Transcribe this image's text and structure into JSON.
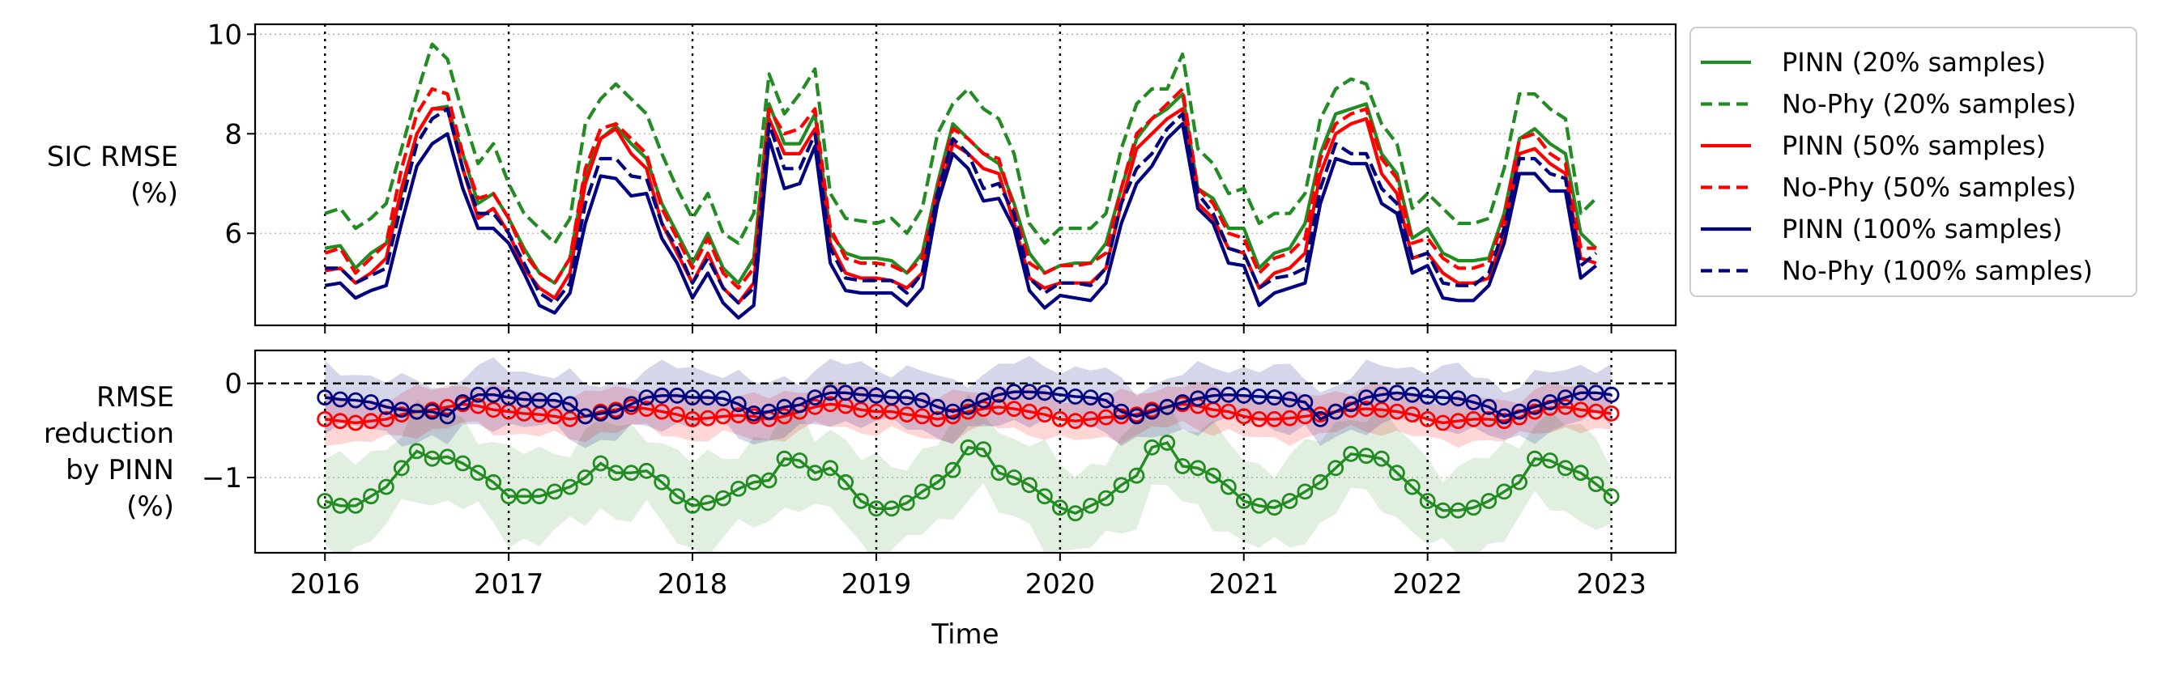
{
  "chart_data": [
    {
      "type": "line",
      "panel": "top",
      "ylabel": "SIC RMSE\n(%)",
      "xlim": [
        2015.62,
        2023.35
      ],
      "ylim": [
        4.15,
        10.2
      ],
      "yticks": [
        6,
        8,
        10
      ],
      "ytick_labels": [
        "6",
        "8",
        "10"
      ],
      "xticks": [
        2016,
        2017,
        2018,
        2019,
        2020,
        2021,
        2022,
        2023
      ],
      "grid": "horizontal dotted",
      "vertical_marker_lines": [
        2016,
        2017,
        2018,
        2019,
        2020,
        2021,
        2022,
        2023
      ],
      "legend_position": "outside right",
      "x_start": 2016,
      "x_step": 0.0833333,
      "series": [
        {
          "name": "PINN (20% samples)",
          "color": "#228B22",
          "dash": "solid",
          "values": [
            5.7,
            5.75,
            5.3,
            5.6,
            5.8,
            6.8,
            8.0,
            8.5,
            8.55,
            7.6,
            6.6,
            6.8,
            6.3,
            5.7,
            5.2,
            5.0,
            5.5,
            7.2,
            7.9,
            8.15,
            7.8,
            7.5,
            6.6,
            6.0,
            5.4,
            6.0,
            5.3,
            5.0,
            5.5,
            8.6,
            7.8,
            7.8,
            8.4,
            6.0,
            5.6,
            5.5,
            5.5,
            5.45,
            5.2,
            5.6,
            7.0,
            8.2,
            7.9,
            7.6,
            7.4,
            6.6,
            5.6,
            5.2,
            5.35,
            5.4,
            5.4,
            5.8,
            6.9,
            7.9,
            8.3,
            8.5,
            8.8,
            6.9,
            6.7,
            6.1,
            6.1,
            5.3,
            5.6,
            5.7,
            6.2,
            7.6,
            8.4,
            8.5,
            8.6,
            7.6,
            7.2,
            5.9,
            6.1,
            5.6,
            5.45,
            5.45,
            5.5,
            6.4,
            7.9,
            8.1,
            7.8,
            7.6,
            6.0,
            5.7
          ]
        },
        {
          "name": "No-Phy (20% samples)",
          "color": "#228B22",
          "dash": "dashed",
          "values": [
            6.4,
            6.5,
            6.1,
            6.3,
            6.6,
            7.7,
            8.8,
            9.8,
            9.5,
            8.4,
            7.4,
            7.8,
            7.0,
            6.4,
            6.1,
            5.8,
            6.3,
            8.2,
            8.7,
            9.0,
            8.7,
            8.4,
            7.6,
            6.9,
            6.3,
            6.8,
            6.0,
            5.8,
            6.4,
            9.2,
            8.4,
            8.8,
            9.3,
            6.8,
            6.3,
            6.25,
            6.2,
            6.3,
            6.0,
            6.5,
            8.0,
            8.6,
            8.9,
            8.5,
            8.3,
            7.6,
            6.2,
            5.8,
            6.1,
            6.1,
            6.1,
            6.4,
            7.7,
            8.6,
            8.9,
            8.9,
            9.6,
            7.7,
            7.4,
            6.8,
            6.9,
            6.2,
            6.4,
            6.4,
            6.8,
            8.3,
            8.9,
            9.1,
            9.0,
            8.2,
            7.8,
            6.5,
            6.8,
            6.5,
            6.2,
            6.2,
            6.3,
            7.3,
            8.8,
            8.8,
            8.5,
            8.3,
            6.4,
            6.7
          ]
        },
        {
          "name": "PINN (50% samples)",
          "color": "#FF0000",
          "dash": "solid",
          "values": [
            5.25,
            5.3,
            5.0,
            5.2,
            5.5,
            6.9,
            8.0,
            8.5,
            8.5,
            7.3,
            6.3,
            6.5,
            6.0,
            5.3,
            4.9,
            4.7,
            5.2,
            7.0,
            7.9,
            8.1,
            7.6,
            7.3,
            6.2,
            5.6,
            5.0,
            5.6,
            4.9,
            4.6,
            5.0,
            8.3,
            7.6,
            7.6,
            8.1,
            5.8,
            5.2,
            5.1,
            5.1,
            5.05,
            4.9,
            5.2,
            6.6,
            7.8,
            7.6,
            7.3,
            7.2,
            6.2,
            5.1,
            4.9,
            5.0,
            5.0,
            5.0,
            5.3,
            6.6,
            7.7,
            8.0,
            8.3,
            8.5,
            6.6,
            6.3,
            5.7,
            5.6,
            4.9,
            5.2,
            5.3,
            5.6,
            7.2,
            8.0,
            8.2,
            8.3,
            7.2,
            6.8,
            5.5,
            5.6,
            5.2,
            5.0,
            5.0,
            5.1,
            6.0,
            7.6,
            7.7,
            7.4,
            7.2,
            5.5,
            5.4
          ]
        },
        {
          "name": "No-Phy (50% samples)",
          "color": "#FF0000",
          "dash": "dashed",
          "values": [
            5.6,
            5.7,
            5.2,
            5.5,
            5.8,
            7.3,
            8.4,
            8.9,
            8.8,
            7.6,
            6.7,
            6.8,
            6.3,
            5.6,
            5.2,
            5.0,
            5.5,
            7.3,
            8.1,
            8.2,
            7.9,
            7.6,
            6.5,
            5.9,
            5.3,
            5.9,
            5.2,
            4.9,
            5.3,
            8.5,
            8.0,
            8.1,
            8.5,
            6.1,
            5.5,
            5.4,
            5.4,
            5.35,
            5.2,
            5.5,
            6.9,
            8.1,
            7.9,
            7.6,
            7.5,
            6.5,
            5.4,
            5.2,
            5.35,
            5.35,
            5.4,
            5.6,
            6.9,
            8.0,
            8.3,
            8.6,
            8.9,
            6.9,
            6.6,
            6.0,
            5.9,
            5.2,
            5.5,
            5.6,
            5.9,
            7.5,
            8.2,
            8.4,
            8.5,
            7.5,
            7.1,
            5.8,
            5.9,
            5.5,
            5.3,
            5.3,
            5.4,
            6.3,
            7.9,
            8.0,
            7.6,
            7.4,
            5.7,
            5.7
          ]
        },
        {
          "name": "PINN (100% samples)",
          "color": "#000080",
          "dash": "solid",
          "values": [
            4.95,
            5.0,
            4.7,
            4.85,
            4.95,
            6.2,
            7.35,
            7.8,
            8.0,
            6.9,
            6.1,
            6.1,
            5.8,
            5.2,
            4.55,
            4.4,
            4.8,
            6.2,
            7.15,
            7.1,
            6.75,
            6.8,
            5.9,
            5.4,
            4.7,
            5.2,
            4.6,
            4.3,
            4.55,
            7.9,
            6.9,
            7.0,
            7.75,
            5.4,
            4.85,
            4.8,
            4.8,
            4.8,
            4.55,
            4.9,
            6.6,
            7.6,
            7.3,
            6.65,
            6.7,
            6.1,
            4.85,
            4.5,
            4.75,
            4.7,
            4.65,
            5.0,
            6.2,
            7.0,
            7.35,
            7.9,
            8.2,
            6.5,
            6.2,
            5.4,
            5.35,
            4.55,
            4.8,
            4.9,
            5.0,
            6.6,
            7.5,
            7.4,
            7.4,
            6.6,
            6.4,
            5.2,
            5.35,
            4.7,
            4.65,
            4.65,
            4.95,
            5.8,
            7.2,
            7.2,
            6.85,
            6.85,
            5.1,
            5.35
          ]
        },
        {
          "name": "No-Phy (100% samples)",
          "color": "#000080",
          "dash": "dashed",
          "values": [
            5.3,
            5.3,
            5.0,
            5.15,
            5.3,
            6.6,
            7.8,
            8.3,
            8.5,
            7.3,
            6.4,
            6.4,
            6.0,
            5.4,
            4.8,
            4.6,
            5.0,
            6.6,
            7.5,
            7.5,
            7.15,
            7.1,
            6.2,
            5.7,
            5.0,
            5.5,
            4.9,
            4.6,
            4.9,
            8.2,
            7.3,
            7.3,
            8.0,
            5.7,
            5.1,
            5.05,
            5.05,
            5.05,
            4.8,
            5.2,
            6.8,
            7.9,
            7.6,
            6.9,
            7.0,
            6.4,
            5.1,
            4.8,
            5.0,
            5.0,
            4.95,
            5.3,
            6.6,
            7.3,
            7.6,
            8.1,
            8.4,
            6.8,
            6.4,
            5.7,
            5.6,
            4.9,
            5.1,
            5.15,
            5.3,
            6.9,
            7.8,
            7.6,
            7.6,
            6.9,
            6.6,
            5.5,
            5.6,
            5.0,
            4.95,
            4.95,
            5.2,
            6.1,
            7.5,
            7.5,
            7.2,
            7.1,
            5.35,
            5.6
          ]
        }
      ]
    },
    {
      "type": "line",
      "panel": "bottom",
      "ylabel": "RMSE\nreduction\nby PINN\n(%)",
      "xlabel": "Time",
      "xlim": [
        2015.62,
        2023.35
      ],
      "ylim": [
        -1.8,
        0.35
      ],
      "yticks": [
        0,
        -1
      ],
      "ytick_labels": [
        "0",
        "−1"
      ],
      "xticks": [
        2016,
        2017,
        2018,
        2019,
        2020,
        2021,
        2022,
        2023
      ],
      "xtick_labels": [
        "2016",
        "2017",
        "2018",
        "2019",
        "2020",
        "2021",
        "2022",
        "2023"
      ],
      "reference_line": 0,
      "grid": "horizontal dotted",
      "vertical_marker_lines": [
        2016,
        2017,
        2018,
        2019,
        2020,
        2021,
        2022,
        2023
      ],
      "x_start": 2016,
      "x_step": 0.0833333,
      "band_halfwidth": {
        "20%": 0.45,
        "50%": 0.22,
        "100%": 0.3
      },
      "series": [
        {
          "name": "20% samples",
          "color": "#228B22",
          "marker": "circle",
          "values": [
            -1.25,
            -1.3,
            -1.3,
            -1.2,
            -1.1,
            -0.9,
            -0.72,
            -0.8,
            -0.78,
            -0.85,
            -0.95,
            -1.05,
            -1.2,
            -1.2,
            -1.2,
            -1.15,
            -1.1,
            -1.0,
            -0.85,
            -0.95,
            -0.95,
            -0.93,
            -1.05,
            -1.2,
            -1.3,
            -1.27,
            -1.22,
            -1.12,
            -1.05,
            -1.03,
            -0.8,
            -0.82,
            -0.95,
            -0.9,
            -1.05,
            -1.25,
            -1.33,
            -1.33,
            -1.27,
            -1.15,
            -1.05,
            -0.92,
            -0.68,
            -0.7,
            -0.95,
            -1.0,
            -1.08,
            -1.2,
            -1.32,
            -1.38,
            -1.3,
            -1.22,
            -1.08,
            -0.98,
            -0.68,
            -0.63,
            -0.88,
            -0.9,
            -0.98,
            -1.1,
            -1.25,
            -1.3,
            -1.32,
            -1.25,
            -1.15,
            -1.05,
            -0.9,
            -0.75,
            -0.77,
            -0.8,
            -0.95,
            -1.1,
            -1.25,
            -1.35,
            -1.35,
            -1.32,
            -1.25,
            -1.15,
            -1.05,
            -0.8,
            -0.82,
            -0.9,
            -0.95,
            -1.07,
            -1.2
          ]
        },
        {
          "name": "50% samples",
          "color": "#FF0000",
          "marker": "circle",
          "values": [
            -0.38,
            -0.4,
            -0.42,
            -0.4,
            -0.38,
            -0.33,
            -0.3,
            -0.28,
            -0.25,
            -0.22,
            -0.24,
            -0.28,
            -0.3,
            -0.32,
            -0.33,
            -0.35,
            -0.38,
            -0.35,
            -0.3,
            -0.28,
            -0.25,
            -0.27,
            -0.3,
            -0.33,
            -0.38,
            -0.37,
            -0.35,
            -0.34,
            -0.35,
            -0.38,
            -0.35,
            -0.3,
            -0.25,
            -0.22,
            -0.24,
            -0.28,
            -0.3,
            -0.3,
            -0.33,
            -0.35,
            -0.38,
            -0.35,
            -0.3,
            -0.27,
            -0.25,
            -0.27,
            -0.3,
            -0.33,
            -0.38,
            -0.4,
            -0.38,
            -0.36,
            -0.35,
            -0.33,
            -0.28,
            -0.25,
            -0.22,
            -0.24,
            -0.28,
            -0.3,
            -0.35,
            -0.38,
            -0.38,
            -0.37,
            -0.35,
            -0.33,
            -0.3,
            -0.28,
            -0.27,
            -0.28,
            -0.3,
            -0.33,
            -0.38,
            -0.42,
            -0.4,
            -0.38,
            -0.38,
            -0.4,
            -0.36,
            -0.3,
            -0.26,
            -0.25,
            -0.28,
            -0.3,
            -0.32
          ]
        },
        {
          "name": "100% samples",
          "color": "#000080",
          "marker": "circle",
          "values": [
            -0.15,
            -0.17,
            -0.18,
            -0.2,
            -0.25,
            -0.28,
            -0.3,
            -0.3,
            -0.35,
            -0.2,
            -0.12,
            -0.12,
            -0.15,
            -0.17,
            -0.18,
            -0.18,
            -0.22,
            -0.35,
            -0.32,
            -0.3,
            -0.22,
            -0.15,
            -0.13,
            -0.13,
            -0.15,
            -0.15,
            -0.16,
            -0.22,
            -0.32,
            -0.3,
            -0.25,
            -0.23,
            -0.15,
            -0.1,
            -0.1,
            -0.12,
            -0.13,
            -0.15,
            -0.15,
            -0.18,
            -0.25,
            -0.3,
            -0.25,
            -0.18,
            -0.12,
            -0.09,
            -0.09,
            -0.1,
            -0.12,
            -0.14,
            -0.15,
            -0.18,
            -0.3,
            -0.35,
            -0.3,
            -0.25,
            -0.2,
            -0.16,
            -0.13,
            -0.12,
            -0.13,
            -0.14,
            -0.15,
            -0.17,
            -0.2,
            -0.38,
            -0.3,
            -0.22,
            -0.15,
            -0.12,
            -0.1,
            -0.12,
            -0.14,
            -0.15,
            -0.16,
            -0.2,
            -0.25,
            -0.35,
            -0.3,
            -0.25,
            -0.2,
            -0.15,
            -0.1,
            -0.1,
            -0.12
          ]
        }
      ]
    }
  ]
}
